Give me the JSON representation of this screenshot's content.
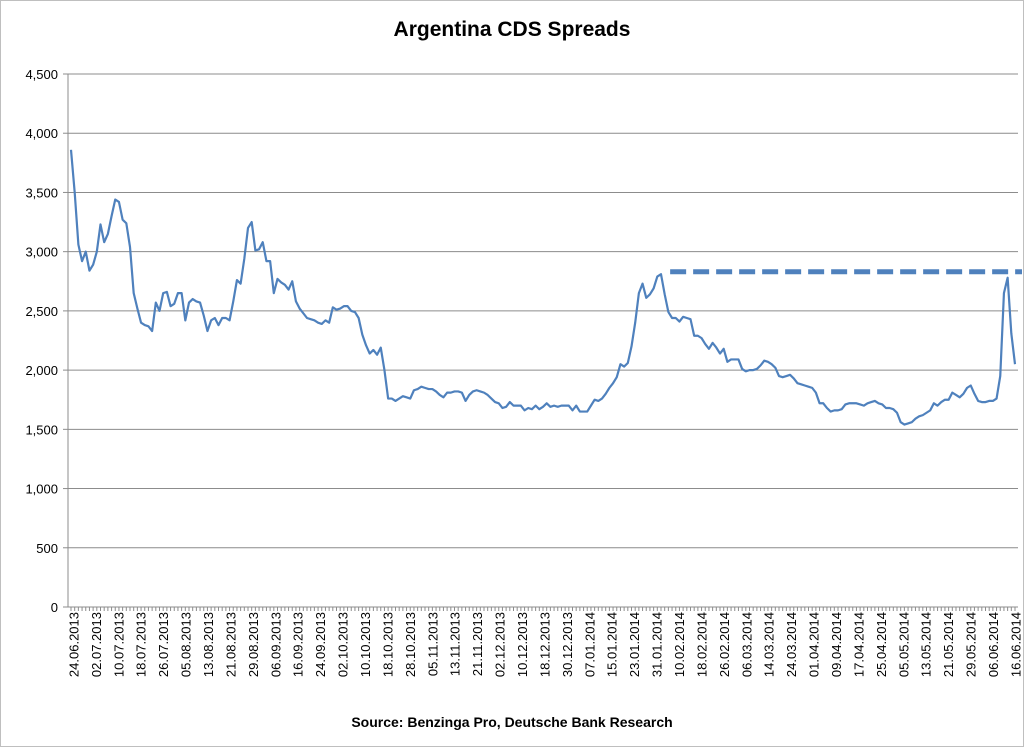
{
  "chart_data": {
    "type": "line",
    "title": "Argentina CDS Spreads",
    "source": "Source: Benzinga Pro, Deutsche Bank Research",
    "xlabel": "",
    "ylabel": "",
    "ylim": [
      0,
      4500
    ],
    "yticks": [
      0,
      500,
      1000,
      1500,
      2000,
      2500,
      3000,
      3500,
      4000,
      4500
    ],
    "ytick_labels": [
      "0",
      "500",
      "1,000",
      "1,500",
      "2,000",
      "2,500",
      "3,000",
      "3,500",
      "4,000",
      "4,500"
    ],
    "xtick_labels": [
      "24.06.2013",
      "02.07.2013",
      "10.07.2013",
      "18.07.2013",
      "26.07.2013",
      "05.08.2013",
      "13.08.2013",
      "21.08.2013",
      "29.08.2013",
      "06.09.2013",
      "16.09.2013",
      "24.09.2013",
      "02.10.2013",
      "10.10.2013",
      "18.10.2013",
      "28.10.2013",
      "05.11.2013",
      "13.11.2013",
      "21.11.2013",
      "02.12.2013",
      "10.12.2013",
      "18.12.2013",
      "30.12.2013",
      "07.01.2014",
      "15.01.2014",
      "23.01.2014",
      "31.01.2014",
      "10.02.2014",
      "18.02.2014",
      "26.02.2014",
      "06.03.2014",
      "14.03.2014",
      "24.03.2014",
      "01.04.2014",
      "09.04.2014",
      "17.04.2014",
      "25.04.2014",
      "05.05.2014",
      "13.05.2014",
      "21.05.2014",
      "29.05.2014",
      "06.06.2014",
      "16.06.2014"
    ],
    "grid": "horizontal",
    "line_color": "#4f81bd",
    "reference_line": {
      "style": "dashed",
      "value": 2830,
      "start": "31.01.2014"
    },
    "series": [
      {
        "values": [
          3860,
          3500,
          3060,
          2920,
          3000,
          2840,
          2890,
          3000,
          3230,
          3080,
          3150,
          3300,
          3440,
          3420,
          3270,
          3240,
          3040,
          2650,
          2520,
          2400,
          2380,
          2370,
          2330,
          2570,
          2500,
          2650,
          2660,
          2540,
          2560,
          2650,
          2650,
          2420,
          2570,
          2600,
          2580,
          2570,
          2460,
          2330,
          2420,
          2440,
          2380,
          2440,
          2440,
          2420,
          2580,
          2760,
          2730,
          2940,
          3200,
          3250,
          3010,
          3020,
          3080,
          2920,
          2920,
          2650,
          2770,
          2740,
          2720,
          2680,
          2750,
          2580,
          2520,
          2480,
          2440,
          2430,
          2420,
          2400,
          2390,
          2420,
          2400,
          2530,
          2510,
          2520,
          2540,
          2540,
          2500,
          2490,
          2440,
          2300,
          2210,
          2140,
          2170,
          2130,
          2190,
          2000,
          1760,
          1760,
          1740,
          1760,
          1780,
          1770,
          1760,
          1830,
          1840,
          1860,
          1850,
          1840,
          1840,
          1820,
          1790,
          1770,
          1810,
          1810,
          1820,
          1820,
          1810,
          1740,
          1790,
          1820,
          1830,
          1820,
          1810,
          1790,
          1760,
          1730,
          1720,
          1680,
          1690,
          1730,
          1700,
          1700,
          1700,
          1660,
          1680,
          1670,
          1700,
          1670,
          1690,
          1720,
          1690,
          1700,
          1690,
          1700,
          1700,
          1700,
          1660,
          1700,
          1650,
          1650,
          1650,
          1700,
          1750,
          1740,
          1760,
          1800,
          1850,
          1890,
          1940,
          2050,
          2030,
          2060,
          2200,
          2400,
          2650,
          2730,
          2610,
          2640,
          2690,
          2790,
          2810,
          2640,
          2490,
          2440,
          2440,
          2410,
          2450,
          2440,
          2430,
          2290,
          2290,
          2270,
          2220,
          2180,
          2230,
          2190,
          2140,
          2180,
          2070,
          2090,
          2090,
          2090,
          2010,
          1990,
          2000,
          2000,
          2010,
          2040,
          2080,
          2070,
          2050,
          2020,
          1950,
          1940,
          1950,
          1960,
          1930,
          1890,
          1880,
          1870,
          1860,
          1850,
          1810,
          1720,
          1720,
          1680,
          1650,
          1660,
          1660,
          1670,
          1710,
          1720,
          1720,
          1720,
          1710,
          1700,
          1720,
          1730,
          1740,
          1720,
          1710,
          1680,
          1680,
          1670,
          1640,
          1560,
          1540,
          1550,
          1560,
          1590,
          1610,
          1620,
          1640,
          1660,
          1720,
          1700,
          1730,
          1750,
          1750,
          1810,
          1790,
          1770,
          1800,
          1850,
          1870,
          1800,
          1740,
          1730,
          1730,
          1740,
          1740,
          1760,
          1950,
          2650,
          2780,
          2310,
          2050
        ]
      }
    ]
  }
}
